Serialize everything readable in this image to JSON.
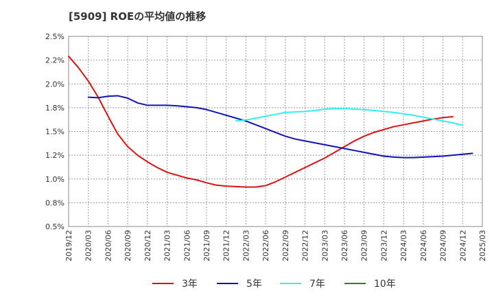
{
  "chart_data": {
    "type": "line",
    "title": "[5909]  ROEの平均値の推移",
    "ylim": [
      0.5,
      2.5
    ],
    "y_ticks": [
      0.5,
      0.75,
      1.0,
      1.25,
      1.5,
      1.75,
      2.0,
      2.25,
      2.5
    ],
    "y_tick_labels": [
      "0.5%",
      "0.8%",
      "1.0%",
      "1.2%",
      "1.5%",
      "1.8%",
      "2.0%",
      "2.2%",
      "2.5%"
    ],
    "x_tick_labels": [
      "2019/12",
      "2020/03",
      "2020/06",
      "2020/09",
      "2020/12",
      "2021/03",
      "2021/06",
      "2021/09",
      "2021/12",
      "2022/03",
      "2022/06",
      "2022/09",
      "2022/12",
      "2023/03",
      "2023/06",
      "2023/09",
      "2023/12",
      "2024/03",
      "2024/06",
      "2024/09",
      "2024/12",
      "2025/03"
    ],
    "grid": true,
    "legend_position": "bottom",
    "series": [
      {
        "name": "3年",
        "color": "#dd1111",
        "values": [
          2.29,
          2.17,
          2.03,
          1.86,
          1.66,
          1.47,
          1.34,
          1.25,
          1.18,
          1.12,
          1.07,
          1.04,
          1.01,
          0.99,
          0.96,
          0.935,
          0.925,
          0.92,
          0.915,
          0.915,
          0.93,
          0.97,
          1.02,
          1.07,
          1.12,
          1.17,
          1.22,
          1.28,
          1.34,
          1.4,
          1.45,
          1.49,
          1.52,
          1.55,
          1.57,
          1.59,
          1.61,
          1.63,
          1.645,
          1.655
        ]
      },
      {
        "name": "5年",
        "color": "#1111bb",
        "values": [
          null,
          null,
          1.86,
          1.855,
          1.87,
          1.875,
          1.85,
          1.8,
          1.775,
          1.775,
          1.775,
          1.77,
          1.76,
          1.75,
          1.73,
          1.7,
          1.67,
          1.64,
          1.61,
          1.57,
          1.53,
          1.49,
          1.45,
          1.42,
          1.4,
          1.38,
          1.36,
          1.34,
          1.32,
          1.3,
          1.28,
          1.26,
          1.24,
          1.23,
          1.225,
          1.225,
          1.23,
          1.235,
          1.24,
          1.25,
          1.26,
          1.27
        ]
      },
      {
        "name": "7年",
        "color": "#33eeee",
        "values": [
          null,
          null,
          null,
          null,
          null,
          null,
          null,
          null,
          null,
          null,
          null,
          null,
          null,
          null,
          null,
          null,
          null,
          1.61,
          1.62,
          1.64,
          1.66,
          1.68,
          1.7,
          1.705,
          1.71,
          1.72,
          1.735,
          1.74,
          1.74,
          1.735,
          1.73,
          1.72,
          1.71,
          1.7,
          1.685,
          1.67,
          1.65,
          1.63,
          1.61,
          1.59,
          1.565
        ]
      },
      {
        "name": "10年",
        "color": "#228822",
        "values": []
      }
    ]
  }
}
